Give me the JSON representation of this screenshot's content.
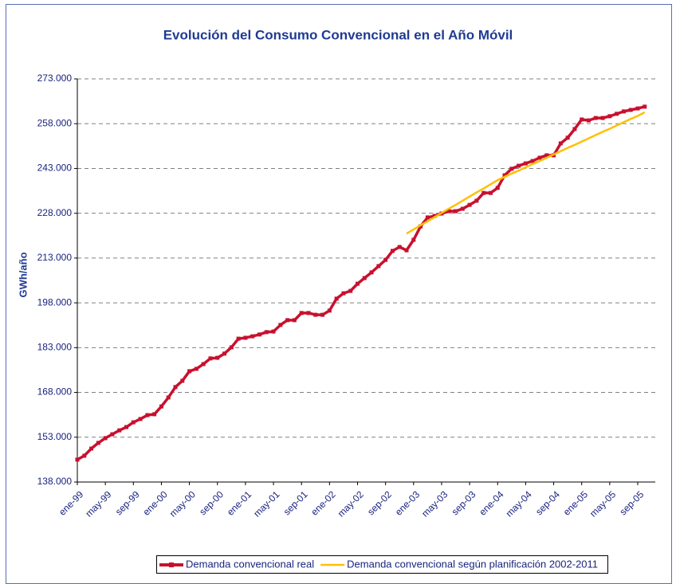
{
  "chart_data": {
    "type": "line",
    "title": "Evolución del Consumo Convencional en el Año Móvil",
    "y_label": "GWh/año",
    "categories": [
      "ene-99",
      null,
      null,
      null,
      "may-99",
      null,
      null,
      null,
      "sep-99",
      null,
      null,
      null,
      "ene-00",
      null,
      null,
      null,
      "may-00",
      null,
      null,
      null,
      "sep-00",
      null,
      null,
      null,
      "ene-01",
      null,
      null,
      null,
      "may-01",
      null,
      null,
      null,
      "sep-01",
      null,
      null,
      null,
      "ene-02",
      null,
      null,
      null,
      "may-02",
      null,
      null,
      null,
      "sep-02",
      null,
      null,
      null,
      "ene-03",
      null,
      null,
      null,
      "may-03",
      null,
      null,
      null,
      "sep-03",
      null,
      null,
      null,
      "ene-04",
      null,
      null,
      null,
      "may-04",
      null,
      null,
      null,
      "sep-04",
      null,
      null,
      null,
      "ene-05",
      null,
      null,
      null,
      "may-05",
      null,
      null,
      null,
      "sep-05",
      null
    ],
    "series": [
      {
        "name": "Demanda convencional real",
        "color": "#c8102e",
        "marker": "square",
        "values": [
          145500,
          146800,
          149200,
          151100,
          152700,
          154000,
          155300,
          156400,
          158000,
          159100,
          160400,
          160700,
          163300,
          166300,
          169800,
          171900,
          175100,
          175900,
          177500,
          179400,
          179600,
          181000,
          183100,
          186000,
          186300,
          186800,
          187400,
          188200,
          188400,
          190600,
          192200,
          192200,
          194600,
          194600,
          194000,
          194000,
          195400,
          199400,
          201200,
          202000,
          204400,
          206300,
          208200,
          210300,
          212400,
          215400,
          216700,
          215600,
          219100,
          223600,
          226600,
          227100,
          227900,
          228700,
          228700,
          229500,
          230800,
          232200,
          234800,
          234800,
          236500,
          240700,
          242900,
          243900,
          244700,
          245500,
          246600,
          247400,
          247400,
          251400,
          253300,
          256200,
          259400,
          259100,
          259900,
          259900,
          260500,
          261300,
          262100,
          262600,
          263100,
          263700
        ]
      },
      {
        "name": "Demanda convencional según planificación 2002-2011",
        "color": "#ffc000",
        "values": [
          null,
          null,
          null,
          null,
          null,
          null,
          null,
          null,
          null,
          null,
          null,
          null,
          null,
          null,
          null,
          null,
          null,
          null,
          null,
          null,
          null,
          null,
          null,
          null,
          null,
          null,
          null,
          null,
          null,
          null,
          null,
          null,
          null,
          null,
          null,
          null,
          null,
          null,
          null,
          null,
          null,
          null,
          null,
          null,
          null,
          null,
          null,
          221200,
          222600,
          224000,
          225300,
          226700,
          228100,
          229500,
          230800,
          232200,
          233600,
          235000,
          236300,
          237700,
          239100,
          240200,
          241300,
          242300,
          243400,
          244500,
          245500,
          246600,
          247700,
          248800,
          249900,
          250900,
          252000,
          253100,
          254200,
          255300,
          256300,
          257400,
          258500,
          259600,
          260600,
          261800
        ]
      }
    ],
    "ylim": [
      138000,
      273000
    ],
    "yticks": [
      {
        "value": 138000,
        "label": "138.000"
      },
      {
        "value": 153000,
        "label": "153.000"
      },
      {
        "value": 168000,
        "label": "168.000"
      },
      {
        "value": 183000,
        "label": "183.000"
      },
      {
        "value": 198000,
        "label": "198.000"
      },
      {
        "value": 213000,
        "label": "213.000"
      },
      {
        "value": 228000,
        "label": "228.000"
      },
      {
        "value": 243000,
        "label": "243.000"
      },
      {
        "value": 258000,
        "label": "258.000"
      },
      {
        "value": 273000,
        "label": "273.000"
      }
    ],
    "grid": true,
    "legend": "bottom"
  }
}
